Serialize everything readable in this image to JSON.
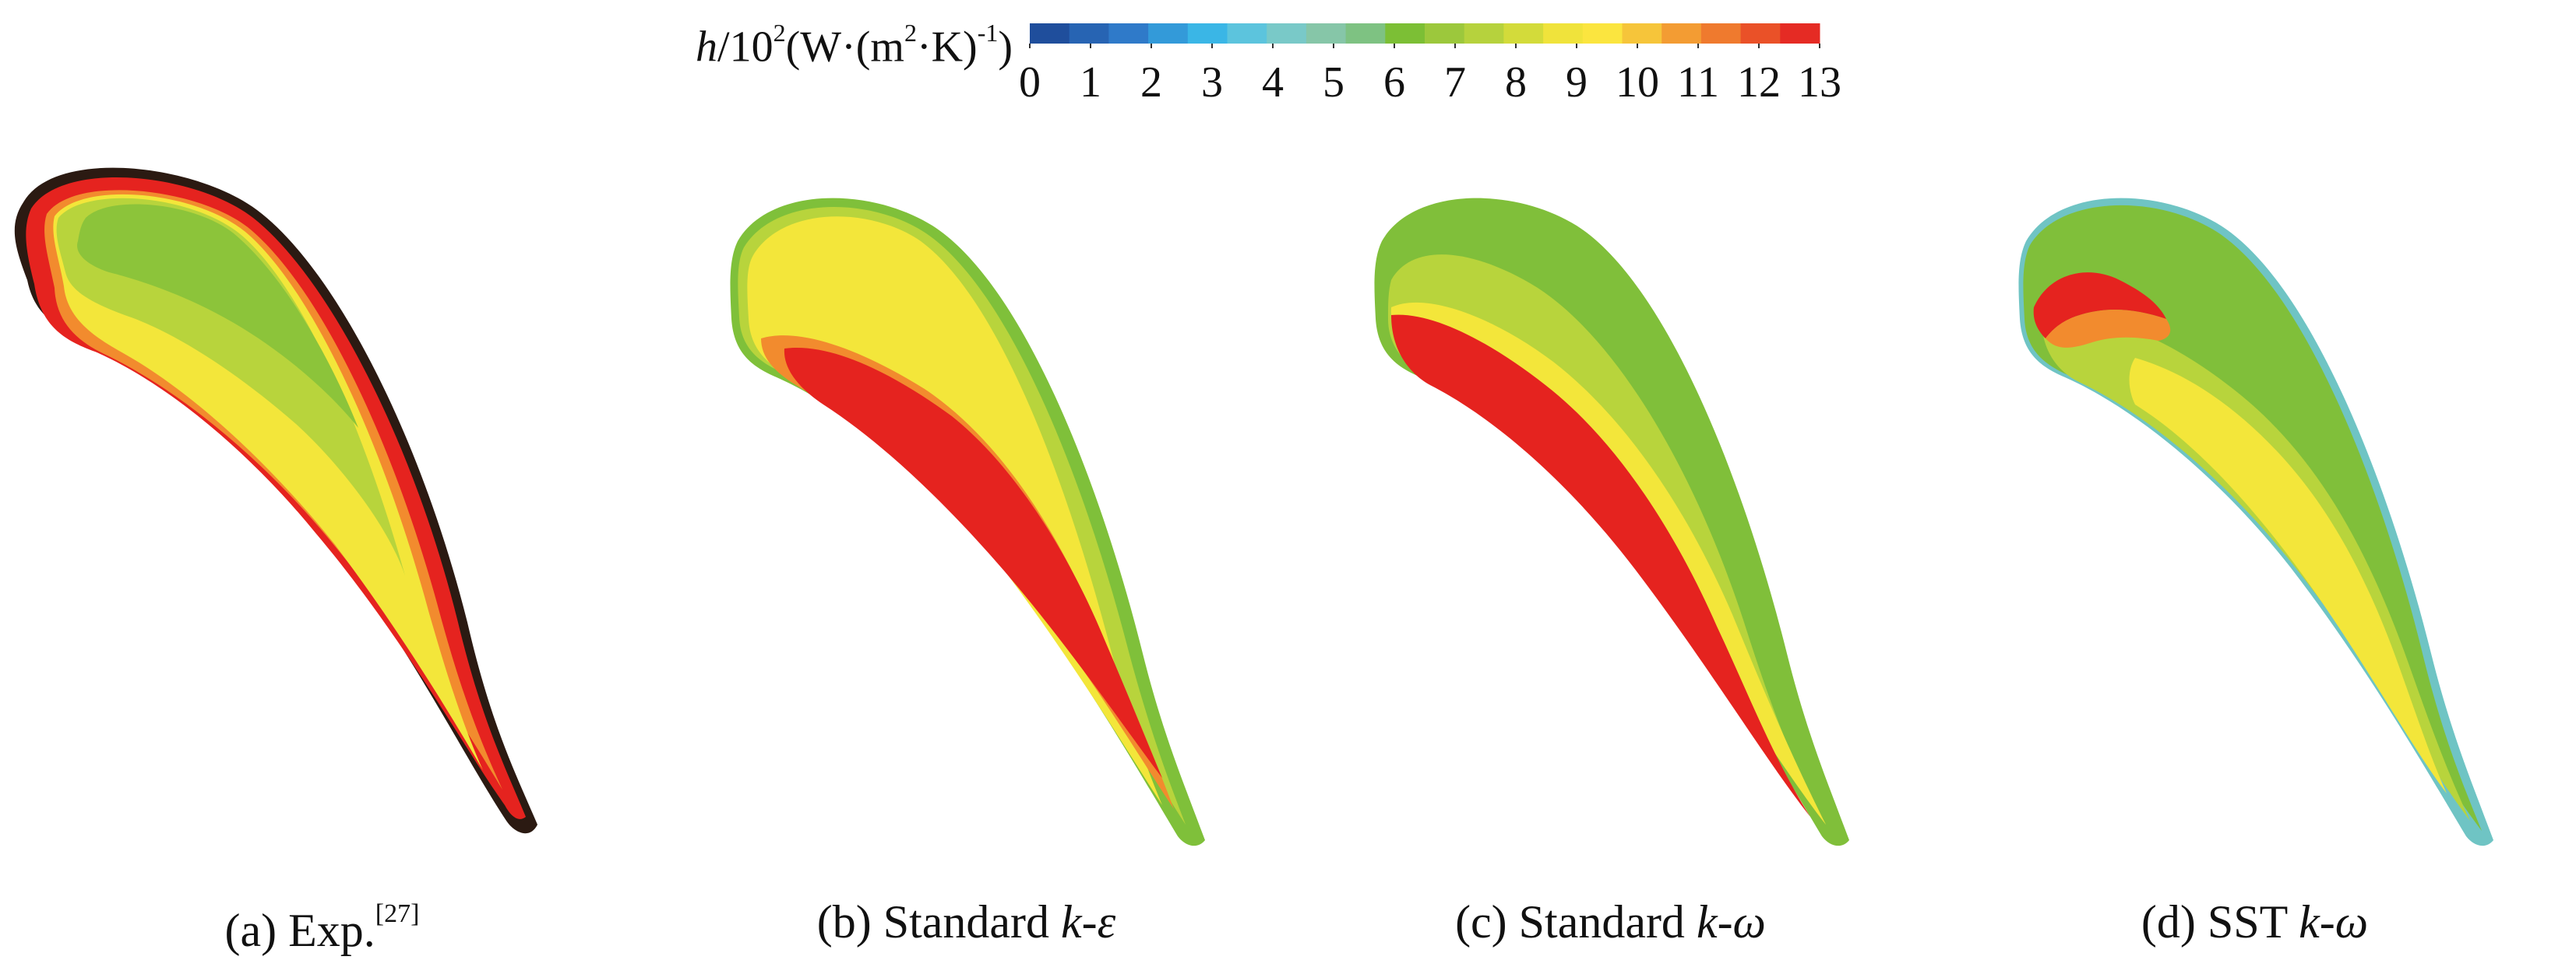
{
  "colorbar": {
    "title_var": "h",
    "title_rest": "/10",
    "title_exp1": "2",
    "title_unit": "(W·(m",
    "title_exp2": "2",
    "title_unit2": "·K)",
    "title_exp3": "-1",
    "title_close": ")",
    "min": 0,
    "max": 13,
    "ticks": [
      "0",
      "1",
      "2",
      "3",
      "4",
      "5",
      "6",
      "7",
      "8",
      "9",
      "10",
      "11",
      "12",
      "13"
    ],
    "colors": [
      "#1f4e9c",
      "#2764b3",
      "#2f7ac9",
      "#339ad9",
      "#3ab6e6",
      "#5cc4dd",
      "#79c9c8",
      "#86c6a8",
      "#7ec282",
      "#7cbf35",
      "#9cc83c",
      "#b6d23d",
      "#d3db3a",
      "#f0e33b",
      "#fbe53f",
      "#f6c53a",
      "#f39c33",
      "#ef7a2e",
      "#ea5128",
      "#e52b24"
    ]
  },
  "panels": [
    {
      "id": "a",
      "label": "(a) Exp.",
      "label_sup": "[27]",
      "label_italic": ""
    },
    {
      "id": "b",
      "label": "(b) Standard ",
      "label_sup": "",
      "label_italic": "k-ε"
    },
    {
      "id": "c",
      "label": "(c) Standard ",
      "label_sup": "",
      "label_italic": "k-ω"
    },
    {
      "id": "d",
      "label": "(d) SST ",
      "label_sup": "",
      "label_italic": "k-ω"
    }
  ],
  "contour_colors": {
    "red": "#e5231f",
    "orange": "#f28b2e",
    "yellow": "#f3e63a",
    "lightgreen": "#b8d43c",
    "green": "#80bf3a",
    "cyan": "#6fc4c4",
    "edge": "#2b1a12"
  }
}
